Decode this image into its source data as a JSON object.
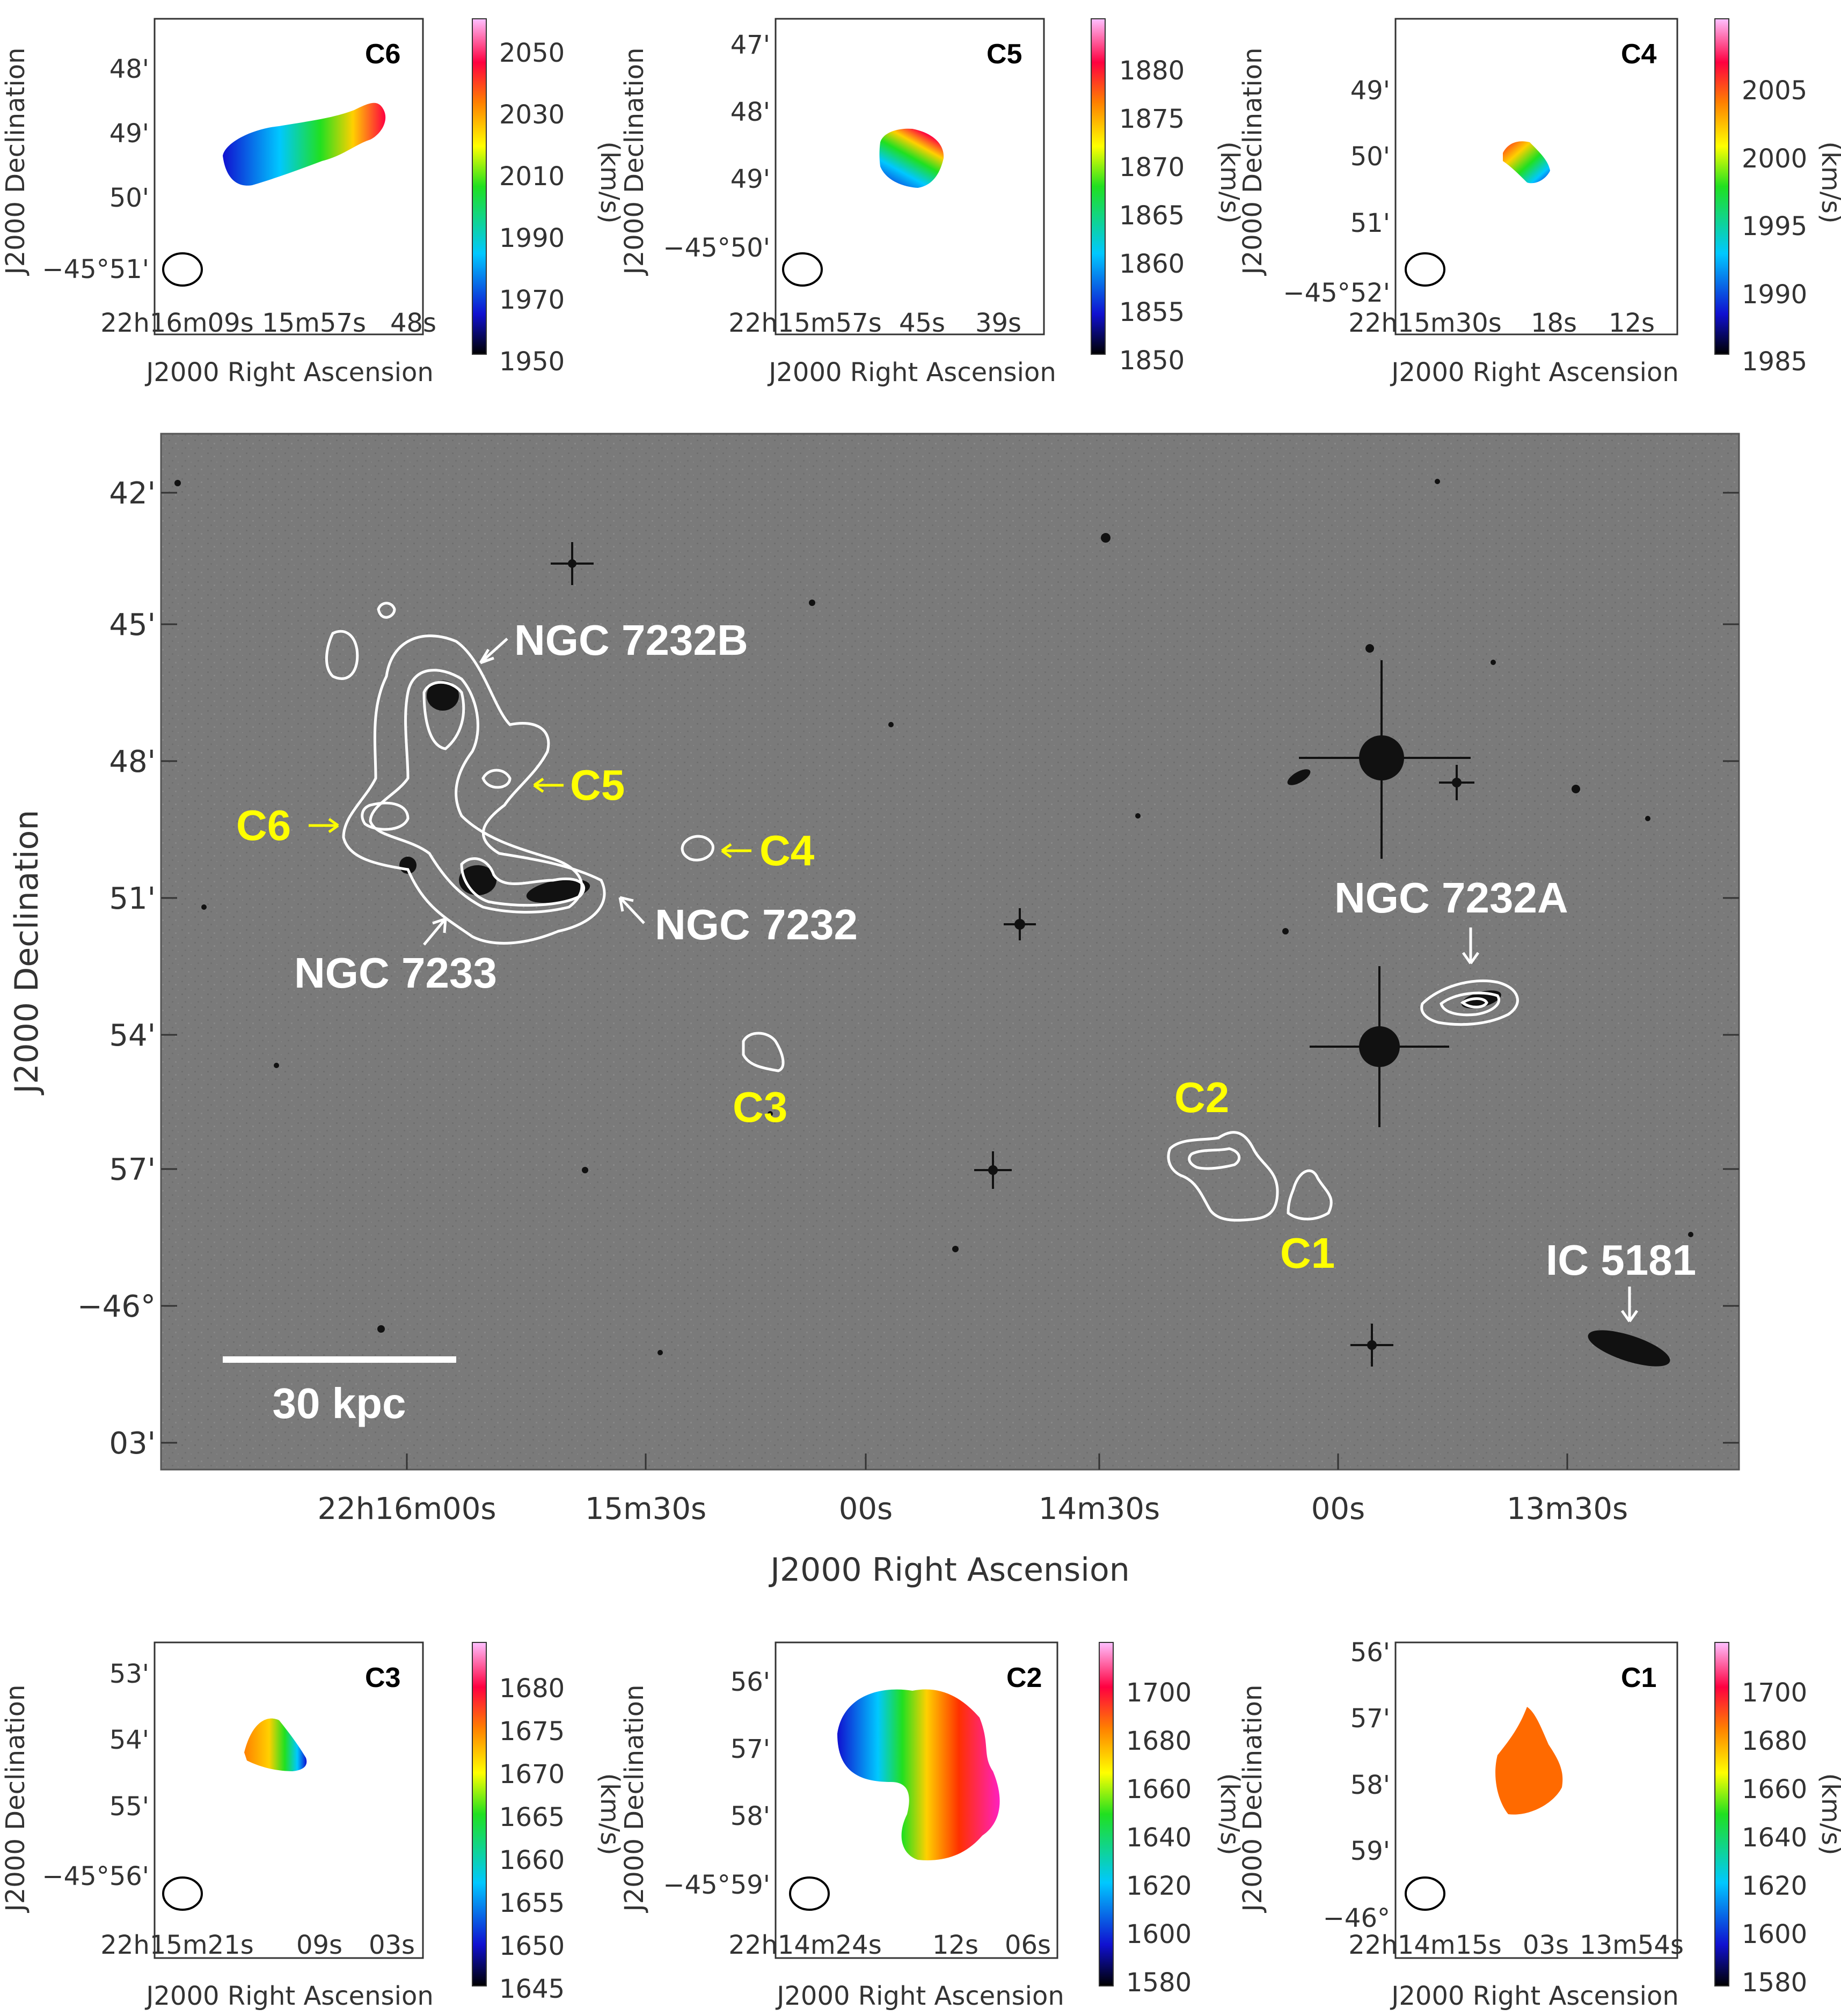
{
  "main": {
    "xlabel": "J2000 Right Ascension",
    "ylabel": "J2000 Declination",
    "dec_ticks": [
      "42'",
      "45'",
      "48'",
      "51'",
      "54'",
      "57'",
      "−46°",
      "03'"
    ],
    "ra_ticks": [
      "22h16m00s",
      "15m30s",
      "00s",
      "14m30s",
      "00s",
      "13m30s"
    ],
    "scale_bar": "30 kpc",
    "white_labels": [
      "NGC 7232B",
      "NGC 7232",
      "NGC 7233",
      "NGC 7232A",
      "IC 5181"
    ],
    "yellow_labels": [
      "C1",
      "C2",
      "C3",
      "C4",
      "C5",
      "C6"
    ],
    "colors": {
      "contour": "#ffffff",
      "yellow": "#ffff00",
      "sky": "#7d7d7d"
    }
  },
  "panels": [
    {
      "name": "C6",
      "xlabel": "J2000 Right Ascension",
      "ylabel": "J2000 Declination",
      "cbar_unit": "(km/s)",
      "dec_ticks": [
        "48'",
        "49'",
        "50'",
        "−45°51'"
      ],
      "ra_ticks": [
        "22h16m09s",
        "15m57s",
        "48s"
      ],
      "cbar_ticks": [
        "2050",
        "2030",
        "2010",
        "1990",
        "1970",
        "1950"
      ]
    },
    {
      "name": "C5",
      "xlabel": "J2000 Right Ascension",
      "ylabel": "J2000 Declination",
      "cbar_unit": "(km/s)",
      "dec_ticks": [
        "47'",
        "48'",
        "49'",
        "−45°50'"
      ],
      "ra_ticks": [
        "22h15m57s",
        "45s",
        "39s"
      ],
      "cbar_ticks": [
        "1880",
        "1875",
        "1870",
        "1865",
        "1860",
        "1855",
        "1850"
      ]
    },
    {
      "name": "C4",
      "xlabel": "J2000 Right Ascension",
      "ylabel": "J2000 Declination",
      "cbar_unit": "(km/s)",
      "dec_ticks": [
        "49'",
        "50'",
        "51'",
        "−45°52'"
      ],
      "ra_ticks": [
        "22h15m30s",
        "18s",
        "12s"
      ],
      "cbar_ticks": [
        "2005",
        "2000",
        "1995",
        "1990",
        "1985"
      ]
    },
    {
      "name": "C3",
      "xlabel": "J2000 Right Ascension",
      "ylabel": "J2000 Declination",
      "cbar_unit": "(km/s)",
      "dec_ticks": [
        "53'",
        "54'",
        "55'",
        "−45°56'"
      ],
      "ra_ticks": [
        "22h15m21s",
        "09s",
        "03s"
      ],
      "cbar_ticks": [
        "1680",
        "1675",
        "1670",
        "1665",
        "1660",
        "1655",
        "1650",
        "1645"
      ]
    },
    {
      "name": "C2",
      "xlabel": "J2000 Right Ascension",
      "ylabel": "J2000 Declination",
      "cbar_unit": "(km/s)",
      "dec_ticks": [
        "56'",
        "57'",
        "58'",
        "−45°59'"
      ],
      "ra_ticks": [
        "22h14m24s",
        "12s",
        "06s"
      ],
      "cbar_ticks": [
        "1700",
        "1680",
        "1660",
        "1640",
        "1620",
        "1600",
        "1580"
      ]
    },
    {
      "name": "C1",
      "xlabel": "J2000 Right Ascension",
      "ylabel": "J2000 Declination",
      "cbar_unit": "(km/s)",
      "dec_ticks": [
        "56'",
        "57'",
        "58'",
        "59'",
        "−46°"
      ],
      "ra_ticks": [
        "22h14m15s",
        "03s",
        "13m54s"
      ],
      "cbar_ticks": [
        "1700",
        "1680",
        "1660",
        "1640",
        "1620",
        "1600",
        "1580"
      ]
    }
  ]
}
